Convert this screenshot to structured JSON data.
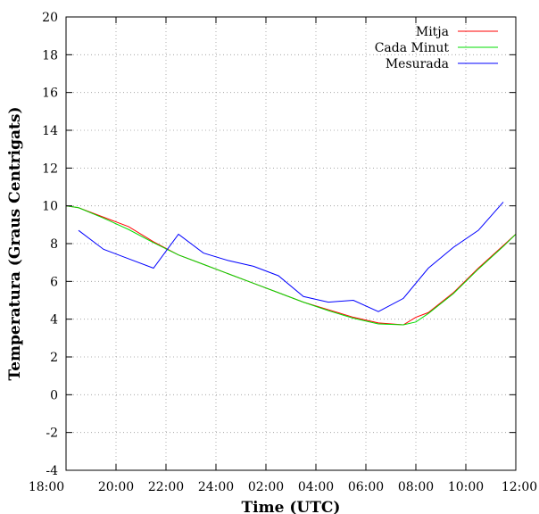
{
  "chart_data": {
    "type": "line",
    "xlabel": "Time (UTC)",
    "ylabel": "Temperatura (Graus Centrigats)",
    "x_unit": "hours",
    "xlim": [
      18,
      36
    ],
    "ylim": [
      -4,
      20
    ],
    "x_ticks": [
      {
        "value": 18,
        "label": "18:00"
      },
      {
        "value": 20,
        "label": "20:00"
      },
      {
        "value": 22,
        "label": "22:00"
      },
      {
        "value": 24,
        "label": "24:00"
      },
      {
        "value": 26,
        "label": "02:00"
      },
      {
        "value": 28,
        "label": "04:00"
      },
      {
        "value": 30,
        "label": "06:00"
      },
      {
        "value": 32,
        "label": "08:00"
      },
      {
        "value": 34,
        "label": "10:00"
      },
      {
        "value": 36,
        "label": "12:00"
      }
    ],
    "y_ticks": [
      {
        "value": -4,
        "label": "-4"
      },
      {
        "value": -2,
        "label": "-2"
      },
      {
        "value": 0,
        "label": "0"
      },
      {
        "value": 2,
        "label": "2"
      },
      {
        "value": 4,
        "label": "4"
      },
      {
        "value": 6,
        "label": "6"
      },
      {
        "value": 8,
        "label": "8"
      },
      {
        "value": 10,
        "label": "10"
      },
      {
        "value": 12,
        "label": "12"
      },
      {
        "value": 14,
        "label": "14"
      },
      {
        "value": 16,
        "label": "16"
      },
      {
        "value": 18,
        "label": "18"
      },
      {
        "value": 20,
        "label": "20"
      }
    ],
    "grid": true,
    "legend_position": "top-right",
    "series": [
      {
        "name": "Mitja",
        "color": "#ff0000",
        "points": [
          [
            18,
            10
          ],
          [
            18.5,
            9.9
          ],
          [
            19.5,
            9.4
          ],
          [
            20.5,
            8.9
          ],
          [
            21.5,
            8.1
          ],
          [
            22.5,
            7.4
          ],
          [
            23.5,
            6.9
          ],
          [
            24.5,
            6.4
          ],
          [
            25.5,
            5.9
          ],
          [
            26.5,
            5.4
          ],
          [
            27.5,
            4.9
          ],
          [
            28.5,
            4.5
          ],
          [
            29.5,
            4.1
          ],
          [
            30.5,
            3.8
          ],
          [
            31.5,
            3.7
          ],
          [
            32,
            4.1
          ],
          [
            32.5,
            4.35
          ],
          [
            33.5,
            5.4
          ],
          [
            34.5,
            6.7
          ],
          [
            35.5,
            7.9
          ],
          [
            36,
            8.5
          ]
        ]
      },
      {
        "name": "Cada Minut",
        "color": "#00dd00",
        "points": [
          [
            18,
            10
          ],
          [
            18.5,
            9.9
          ],
          [
            19.5,
            9.35
          ],
          [
            20.5,
            8.75
          ],
          [
            21.5,
            8.05
          ],
          [
            22.5,
            7.4
          ],
          [
            23.5,
            6.9
          ],
          [
            24.5,
            6.4
          ],
          [
            25.5,
            5.9
          ],
          [
            26.5,
            5.4
          ],
          [
            27.5,
            4.9
          ],
          [
            28.5,
            4.45
          ],
          [
            29.5,
            4.05
          ],
          [
            30.5,
            3.75
          ],
          [
            31.5,
            3.7
          ],
          [
            32,
            3.85
          ],
          [
            32.5,
            4.3
          ],
          [
            33.5,
            5.35
          ],
          [
            34.5,
            6.65
          ],
          [
            35.5,
            7.85
          ],
          [
            36,
            8.5
          ]
        ]
      },
      {
        "name": "Mesurada",
        "color": "#0000ff",
        "points": [
          [
            18.5,
            8.7
          ],
          [
            19.5,
            7.7
          ],
          [
            20.5,
            7.2
          ],
          [
            21.5,
            6.7
          ],
          [
            22.5,
            8.5
          ],
          [
            23.5,
            7.5
          ],
          [
            24.5,
            7.1
          ],
          [
            25.5,
            6.8
          ],
          [
            26.5,
            6.3
          ],
          [
            27.5,
            5.2
          ],
          [
            28.5,
            4.9
          ],
          [
            29.5,
            5.0
          ],
          [
            30.5,
            4.4
          ],
          [
            31.5,
            5.1
          ],
          [
            32.5,
            6.7
          ],
          [
            33.5,
            7.8
          ],
          [
            34.5,
            8.7
          ],
          [
            35.5,
            10.2
          ]
        ]
      }
    ]
  }
}
